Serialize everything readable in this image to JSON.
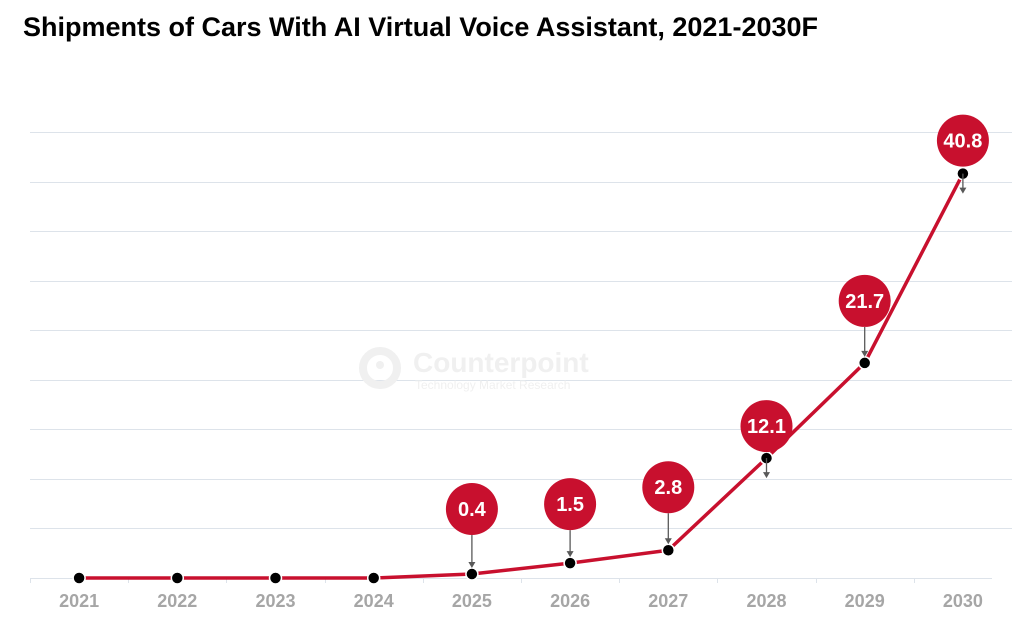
{
  "title": "Shipments of Cars With AI Virtual Voice Assistant, 2021-2030F",
  "watermark": {
    "brand": "Counterpoint",
    "tagline": "Technology Market Research"
  },
  "colors": {
    "line": "#c8102e",
    "bubble": "#c8102e",
    "marker": "#000000",
    "grid": "#dde3ea",
    "tick": "#a6a6a6",
    "arrow": "#595959"
  },
  "chart_data": {
    "type": "line",
    "title": "Shipments of Cars With AI Virtual Voice Assistant, 2021-2030F",
    "xlabel": "",
    "ylabel": "",
    "categories": [
      "2021",
      "2022",
      "2023",
      "2024",
      "2025",
      "2026",
      "2027",
      "2028",
      "2029",
      "2030"
    ],
    "series": [
      {
        "name": "Shipments",
        "values": [
          0,
          0,
          0,
          0,
          0.4,
          1.5,
          2.8,
          12.1,
          21.7,
          40.8
        ]
      }
    ],
    "data_labels": [
      null,
      null,
      null,
      null,
      "0.4",
      "1.5",
      "2.8",
      "12.1",
      "21.7",
      "40.8"
    ],
    "ylim": [
      0,
      45
    ],
    "ytick_step": 5,
    "yticks_shown": false,
    "grid": true,
    "legend": "none"
  }
}
